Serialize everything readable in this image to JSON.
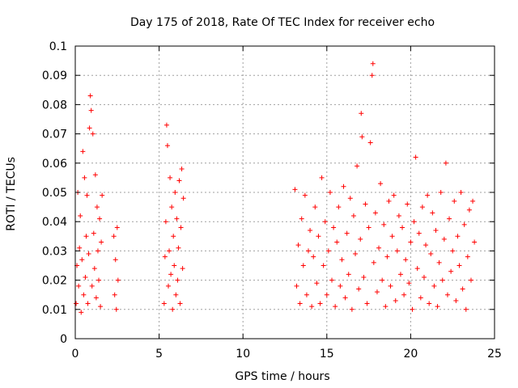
{
  "chart_data": {
    "type": "scatter",
    "title": "Day 175 of 2018, Rate Of TEC Index for receiver echo",
    "xlabel": "GPS time / hours",
    "ylabel": "ROTI / TECUs",
    "xlim": [
      0,
      25
    ],
    "ylim": [
      0,
      0.1
    ],
    "xticks": [
      0,
      5,
      10,
      15,
      20,
      25
    ],
    "yticks": [
      0,
      0.01,
      0.02,
      0.03,
      0.04,
      0.05,
      0.06,
      0.07,
      0.08,
      0.09,
      0.1
    ],
    "x_tick_labels": [
      "0",
      "5",
      "10",
      "15",
      "20",
      "25"
    ],
    "y_tick_labels": [
      "0",
      "0.01",
      "0.02",
      "0.03",
      "0.04",
      "0.05",
      "0.06",
      "0.07",
      "0.08",
      "0.09",
      "0.1"
    ],
    "grid": true,
    "marker": "plus",
    "color": "#ff0000",
    "series": [
      {
        "name": "ROTI",
        "points": [
          [
            0.05,
            0.012
          ],
          [
            0.1,
            0.025
          ],
          [
            0.15,
            0.05
          ],
          [
            0.2,
            0.018
          ],
          [
            0.25,
            0.031
          ],
          [
            0.3,
            0.042
          ],
          [
            0.35,
            0.009
          ],
          [
            0.4,
            0.027
          ],
          [
            0.45,
            0.064
          ],
          [
            0.5,
            0.015
          ],
          [
            0.55,
            0.055
          ],
          [
            0.6,
            0.021
          ],
          [
            0.65,
            0.035
          ],
          [
            0.7,
            0.049
          ],
          [
            0.75,
            0.012
          ],
          [
            0.8,
            0.029
          ],
          [
            0.85,
            0.072
          ],
          [
            0.9,
            0.083
          ],
          [
            0.95,
            0.078
          ],
          [
            1.0,
            0.018
          ],
          [
            1.05,
            0.07
          ],
          [
            1.1,
            0.036
          ],
          [
            1.15,
            0.024
          ],
          [
            1.2,
            0.056
          ],
          [
            1.25,
            0.014
          ],
          [
            1.3,
            0.045
          ],
          [
            1.35,
            0.03
          ],
          [
            1.4,
            0.02
          ],
          [
            1.45,
            0.041
          ],
          [
            1.5,
            0.011
          ],
          [
            1.55,
            0.033
          ],
          [
            1.6,
            0.049
          ],
          [
            2.3,
            0.035
          ],
          [
            2.35,
            0.015
          ],
          [
            2.4,
            0.027
          ],
          [
            2.45,
            0.01
          ],
          [
            2.5,
            0.038
          ],
          [
            2.55,
            0.02
          ],
          [
            5.3,
            0.012
          ],
          [
            5.35,
            0.028
          ],
          [
            5.4,
            0.04
          ],
          [
            5.45,
            0.073
          ],
          [
            5.5,
            0.066
          ],
          [
            5.55,
            0.018
          ],
          [
            5.6,
            0.03
          ],
          [
            5.65,
            0.055
          ],
          [
            5.7,
            0.022
          ],
          [
            5.75,
            0.045
          ],
          [
            5.8,
            0.01
          ],
          [
            5.85,
            0.035
          ],
          [
            5.9,
            0.025
          ],
          [
            5.95,
            0.05
          ],
          [
            6.0,
            0.015
          ],
          [
            6.05,
            0.041
          ],
          [
            6.1,
            0.02
          ],
          [
            6.15,
            0.031
          ],
          [
            6.2,
            0.054
          ],
          [
            6.25,
            0.012
          ],
          [
            6.3,
            0.038
          ],
          [
            6.35,
            0.058
          ],
          [
            6.4,
            0.024
          ],
          [
            6.45,
            0.048
          ],
          [
            13.1,
            0.051
          ],
          [
            13.2,
            0.018
          ],
          [
            13.3,
            0.032
          ],
          [
            13.4,
            0.012
          ],
          [
            13.5,
            0.041
          ],
          [
            13.6,
            0.025
          ],
          [
            13.7,
            0.049
          ],
          [
            13.8,
            0.015
          ],
          [
            13.9,
            0.03
          ],
          [
            14.0,
            0.037
          ],
          [
            14.1,
            0.011
          ],
          [
            14.2,
            0.028
          ],
          [
            14.3,
            0.045
          ],
          [
            14.4,
            0.019
          ],
          [
            14.5,
            0.035
          ],
          [
            14.6,
            0.012
          ],
          [
            14.7,
            0.055
          ],
          [
            14.8,
            0.025
          ],
          [
            14.9,
            0.04
          ],
          [
            15.0,
            0.015
          ],
          [
            15.1,
            0.03
          ],
          [
            15.2,
            0.05
          ],
          [
            15.3,
            0.02
          ],
          [
            15.4,
            0.038
          ],
          [
            15.5,
            0.011
          ],
          [
            15.6,
            0.033
          ],
          [
            15.7,
            0.045
          ],
          [
            15.8,
            0.018
          ],
          [
            15.9,
            0.027
          ],
          [
            16.0,
            0.052
          ],
          [
            16.1,
            0.014
          ],
          [
            16.2,
            0.036
          ],
          [
            16.3,
            0.022
          ],
          [
            16.4,
            0.048
          ],
          [
            16.5,
            0.01
          ],
          [
            16.6,
            0.042
          ],
          [
            16.7,
            0.029
          ],
          [
            16.8,
            0.059
          ],
          [
            16.9,
            0.017
          ],
          [
            17.0,
            0.034
          ],
          [
            17.05,
            0.077
          ],
          [
            17.1,
            0.069
          ],
          [
            17.2,
            0.021
          ],
          [
            17.3,
            0.046
          ],
          [
            17.4,
            0.012
          ],
          [
            17.5,
            0.038
          ],
          [
            17.6,
            0.067
          ],
          [
            17.7,
            0.09
          ],
          [
            17.75,
            0.094
          ],
          [
            17.8,
            0.026
          ],
          [
            17.9,
            0.043
          ],
          [
            18.0,
            0.016
          ],
          [
            18.1,
            0.031
          ],
          [
            18.2,
            0.053
          ],
          [
            18.3,
            0.02
          ],
          [
            18.4,
            0.039
          ],
          [
            18.5,
            0.011
          ],
          [
            18.6,
            0.028
          ],
          [
            18.7,
            0.047
          ],
          [
            18.8,
            0.018
          ],
          [
            18.9,
            0.035
          ],
          [
            19.0,
            0.049
          ],
          [
            19.1,
            0.013
          ],
          [
            19.2,
            0.03
          ],
          [
            19.3,
            0.042
          ],
          [
            19.4,
            0.022
          ],
          [
            19.5,
            0.038
          ],
          [
            19.6,
            0.015
          ],
          [
            19.7,
            0.027
          ],
          [
            19.8,
            0.046
          ],
          [
            19.9,
            0.019
          ],
          [
            20.0,
            0.033
          ],
          [
            20.1,
            0.01
          ],
          [
            20.2,
            0.04
          ],
          [
            20.3,
            0.062
          ],
          [
            20.4,
            0.024
          ],
          [
            20.5,
            0.036
          ],
          [
            20.6,
            0.014
          ],
          [
            20.7,
            0.045
          ],
          [
            20.8,
            0.021
          ],
          [
            20.9,
            0.032
          ],
          [
            21.0,
            0.049
          ],
          [
            21.1,
            0.012
          ],
          [
            21.2,
            0.029
          ],
          [
            21.3,
            0.043
          ],
          [
            21.4,
            0.018
          ],
          [
            21.5,
            0.037
          ],
          [
            21.6,
            0.011
          ],
          [
            21.7,
            0.026
          ],
          [
            21.8,
            0.05
          ],
          [
            21.9,
            0.02
          ],
          [
            22.0,
            0.034
          ],
          [
            22.1,
            0.06
          ],
          [
            22.2,
            0.015
          ],
          [
            22.3,
            0.041
          ],
          [
            22.4,
            0.023
          ],
          [
            22.5,
            0.03
          ],
          [
            22.6,
            0.047
          ],
          [
            22.7,
            0.013
          ],
          [
            22.8,
            0.035
          ],
          [
            22.9,
            0.025
          ],
          [
            23.0,
            0.05
          ],
          [
            23.1,
            0.017
          ],
          [
            23.2,
            0.039
          ],
          [
            23.3,
            0.01
          ],
          [
            23.4,
            0.028
          ],
          [
            23.5,
            0.044
          ],
          [
            23.6,
            0.02
          ],
          [
            23.7,
            0.047
          ],
          [
            23.8,
            0.033
          ]
        ]
      }
    ]
  }
}
